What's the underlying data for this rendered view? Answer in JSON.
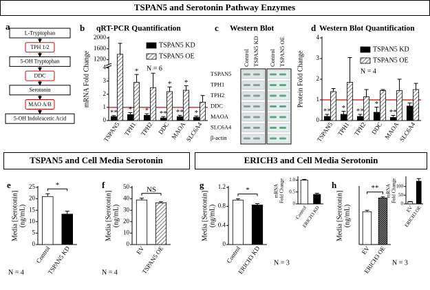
{
  "title": "TSPAN5 and Serotonin Pathway Enzymes",
  "sections": [
    "TSPAN5 and Cell Media Serotonin",
    "ERICH3 and Cell Media Serotonin"
  ],
  "pathway": {
    "label": "a",
    "nodes": [
      "L-Tryptophan",
      "TPH 1/2",
      "5-OH Tryptophan",
      "DDC",
      "Serotonin",
      "MAO A/B",
      "5-OH Indoleacetic Acid"
    ]
  },
  "western_blot": {
    "label": "c",
    "title": "Western Blot",
    "lanes": [
      "Control",
      "TSPAN5 KD",
      "Control",
      "TSPAN5 OE"
    ],
    "proteins": [
      "TSPAN5",
      "TPH1",
      "TPH2",
      "DDC",
      "MAOA",
      "SLC6A4",
      "β-actin"
    ]
  },
  "chart_data": [
    {
      "type": "bar",
      "label": "b",
      "title": "qRT-PCR Quantification",
      "y_label": [
        "mRNA Fold Change"
      ],
      "categories": [
        "TSPAN5",
        "TPH1",
        "TPH2",
        "DDC",
        "MAOA",
        "SLC6A4"
      ],
      "series": [
        {
          "name": "TSPAN5 KD",
          "color": "#000000",
          "values": [
            0.3,
            0.45,
            0.4,
            0.2,
            0.3,
            0.25
          ],
          "errors": [
            0.08,
            0.15,
            0.12,
            0.1,
            0.1,
            0.1
          ],
          "significance": [
            "**",
            "*",
            "*",
            "**",
            "**",
            "*"
          ]
        },
        {
          "name": "TSPAN5 OE",
          "color": "#ffffff",
          "pattern": "diagonal",
          "values": [
            1400,
            2.9,
            2.5,
            2.2,
            2.3,
            1.4
          ],
          "errors": [
            400,
            0.6,
            1.1,
            0.35,
            0.35,
            0.5
          ],
          "significance": [
            null,
            "*",
            null,
            "*",
            "*",
            null
          ]
        }
      ],
      "ylim": [
        0,
        2000
      ],
      "axis_break": [
        4,
        1000
      ],
      "yticks": [
        0,
        1,
        2,
        3,
        4,
        1200,
        1600,
        2000
      ],
      "reference_line": 1,
      "reference_color": "#e00000",
      "note": "N = 6"
    },
    {
      "type": "bar",
      "label": "d",
      "title": "Western Blot Quantification",
      "y_label": [
        "Protein Fold Change"
      ],
      "categories": [
        "TSPAN5",
        "TPH1",
        "TPH2",
        "DDC",
        "MAOA",
        "SLC6A4"
      ],
      "series": [
        {
          "name": "TSPAN5 KD",
          "color": "#000000",
          "values": [
            0.2,
            0.3,
            0.2,
            0.4,
            0.15,
            0.7
          ],
          "errors": [
            0.1,
            0.15,
            0.1,
            0.25,
            0.1,
            0.15
          ],
          "significance": [
            "**",
            "*",
            "**",
            "*",
            "**",
            null
          ]
        },
        {
          "name": "TSPAN5 OE",
          "color": "#ffffff",
          "pattern": "diagonal",
          "values": [
            1.4,
            1.85,
            1.15,
            1.45,
            1.45,
            1.5
          ],
          "errors": [
            0.15,
            1.2,
            0.35,
            0.05,
            0.55,
            0.3
          ],
          "significance": [
            null,
            null,
            null,
            null,
            null,
            null
          ]
        }
      ],
      "ylim": [
        0,
        4
      ],
      "yticks": [
        0,
        1,
        2,
        3,
        4
      ],
      "reference_line": 1,
      "reference_color": "#e00000",
      "note": "N = 4"
    },
    {
      "type": "bar",
      "label": "e",
      "y_label": [
        "Media [Serotonin]",
        "(ng/mL)"
      ],
      "categories": [
        "Control",
        "TSPAN5 KD"
      ],
      "values": [
        21,
        13.3
      ],
      "errors": [
        1.2,
        1.3
      ],
      "colors": [
        "#ffffff",
        "#000000"
      ],
      "significance": "*",
      "ylim": [
        0,
        25
      ],
      "yticks": [
        0,
        5,
        10,
        15,
        20,
        25
      ],
      "note": "N = 4"
    },
    {
      "type": "bar",
      "label": "f",
      "y_label": [
        "Media [Serotonin]",
        "(ng/mL)"
      ],
      "categories": [
        "EV",
        "TSPAN5 OE"
      ],
      "values": [
        39,
        36.5
      ],
      "errors": [
        1.5,
        1
      ],
      "colors": [
        "#ffffff",
        "#ffffff"
      ],
      "patterns": [
        null,
        "diagonal"
      ],
      "significance": "NS",
      "ylim": [
        0,
        50
      ],
      "yticks": [
        0,
        10,
        20,
        30,
        40,
        50
      ],
      "note": "N = 4"
    },
    {
      "type": "bar",
      "label": "g",
      "y_label": [
        "Media [Serotonin]",
        "(ng/mL)"
      ],
      "categories": [
        "Control",
        "ERICH3 KD"
      ],
      "values": [
        0.93,
        0.83
      ],
      "errors": [
        0.03,
        0.03
      ],
      "colors": [
        "#ffffff",
        "#000000"
      ],
      "significance": "*",
      "ylim": [
        0,
        1.2
      ],
      "yticks": [
        0,
        0.4,
        0.8,
        1.2
      ],
      "note": "N = 3"
    },
    {
      "type": "bar",
      "y_label": [
        "mRNA",
        "Fold Change"
      ],
      "categories": [
        "Control",
        "ERICH3 KD"
      ],
      "values": [
        1,
        0.4
      ],
      "errors": [
        0.03,
        0.05
      ],
      "colors": [
        "#ffffff",
        "#000000"
      ],
      "ylim": [
        0,
        1.1
      ],
      "yticks": [
        0,
        0.5,
        {
          "value": 1,
          "label": "1.0"
        }
      ]
    },
    {
      "type": "bar",
      "label": "h",
      "y_label": [
        "Media [Serotonin]",
        "(ng/mL)"
      ],
      "categories": [
        "EV",
        "ERICH3 OE"
      ],
      "values": [
        11.5,
        16.3
      ],
      "errors": [
        0.5,
        0.4
      ],
      "colors": [
        "#ffffff",
        "#ffffff"
      ],
      "patterns": [
        null,
        "checker"
      ],
      "significance": "**",
      "ylim": [
        0,
        20
      ],
      "note": "N = 3"
    },
    {
      "type": "bar",
      "y_label": [
        "mRNA",
        "Fold Change"
      ],
      "categories": [
        "EV",
        "ERICH3 OE"
      ],
      "values": [
        12,
        130
      ],
      "errors": [
        2,
        15
      ],
      "colors": [
        "#ffffff",
        "#000000"
      ],
      "ylim": [
        0,
        150
      ],
      "yticks": [
        0,
        50,
        100
      ]
    }
  ]
}
